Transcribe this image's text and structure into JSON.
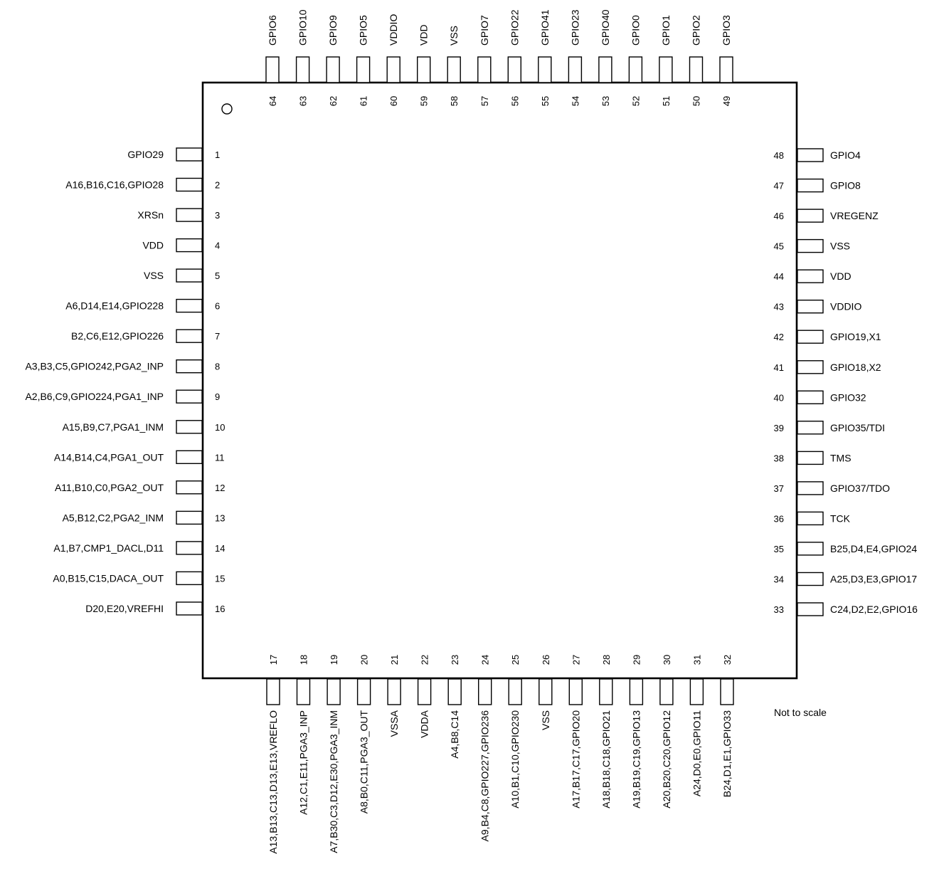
{
  "note": "Not to scale",
  "pins": {
    "left": [
      {
        "number": "1",
        "signal": "GPIO29"
      },
      {
        "number": "2",
        "signal": "A16,B16,C16,GPIO28"
      },
      {
        "number": "3",
        "signal": "XRSn"
      },
      {
        "number": "4",
        "signal": "VDD"
      },
      {
        "number": "5",
        "signal": "VSS"
      },
      {
        "number": "6",
        "signal": "A6,D14,E14,GPIO228"
      },
      {
        "number": "7",
        "signal": "B2,C6,E12,GPIO226"
      },
      {
        "number": "8",
        "signal": "A3,B3,C5,GPIO242,PGA2_INP"
      },
      {
        "number": "9",
        "signal": "A2,B6,C9,GPIO224,PGA1_INP"
      },
      {
        "number": "10",
        "signal": "A15,B9,C7,PGA1_INM"
      },
      {
        "number": "11",
        "signal": "A14,B14,C4,PGA1_OUT"
      },
      {
        "number": "12",
        "signal": "A11,B10,C0,PGA2_OUT"
      },
      {
        "number": "13",
        "signal": "A5,B12,C2,PGA2_INM"
      },
      {
        "number": "14",
        "signal": "A1,B7,CMP1_DACL,D11"
      },
      {
        "number": "15",
        "signal": "A0,B15,C15,DACA_OUT"
      },
      {
        "number": "16",
        "signal": "D20,E20,VREFHI"
      }
    ],
    "bottom": [
      {
        "number": "17",
        "signal": "A13,B13,C13,D13,E13,VREFLO"
      },
      {
        "number": "18",
        "signal": "A12,C1,E11,PGA3_INP"
      },
      {
        "number": "19",
        "signal": "A7,B30,C3,D12,E30,PGA3_INM"
      },
      {
        "number": "20",
        "signal": "A8,B0,C11,PGA3_OUT"
      },
      {
        "number": "21",
        "signal": "VSSA"
      },
      {
        "number": "22",
        "signal": "VDDA"
      },
      {
        "number": "23",
        "signal": "A4,B8,C14"
      },
      {
        "number": "24",
        "signal": "A9,B4,C8,GPIO227,GPIO236"
      },
      {
        "number": "25",
        "signal": "A10,B1,C10,GPIO230"
      },
      {
        "number": "26",
        "signal": "VSS"
      },
      {
        "number": "27",
        "signal": "A17,B17,C17,GPIO20"
      },
      {
        "number": "28",
        "signal": "A18,B18,C18,GPIO21"
      },
      {
        "number": "29",
        "signal": "A19,B19,C19,GPIO13"
      },
      {
        "number": "30",
        "signal": "A20,B20,C20,GPIO12"
      },
      {
        "number": "31",
        "signal": "A24,D0,E0,GPIO11"
      },
      {
        "number": "32",
        "signal": "B24,D1,E1,GPIO33"
      }
    ],
    "right": [
      {
        "number": "33",
        "signal": "C24,D2,E2,GPIO16"
      },
      {
        "number": "34",
        "signal": "A25,D3,E3,GPIO17"
      },
      {
        "number": "35",
        "signal": "B25,D4,E4,GPIO24"
      },
      {
        "number": "36",
        "signal": "TCK"
      },
      {
        "number": "37",
        "signal": "GPIO37/TDO"
      },
      {
        "number": "38",
        "signal": "TMS"
      },
      {
        "number": "39",
        "signal": "GPIO35/TDI"
      },
      {
        "number": "40",
        "signal": "GPIO32"
      },
      {
        "number": "41",
        "signal": "GPIO18,X2"
      },
      {
        "number": "42",
        "signal": "GPIO19,X1"
      },
      {
        "number": "43",
        "signal": "VDDIO"
      },
      {
        "number": "44",
        "signal": "VDD"
      },
      {
        "number": "45",
        "signal": "VSS"
      },
      {
        "number": "46",
        "signal": "VREGENZ"
      },
      {
        "number": "47",
        "signal": "GPIO8"
      },
      {
        "number": "48",
        "signal": "GPIO4"
      }
    ],
    "top": [
      {
        "number": "49",
        "signal": "GPIO3"
      },
      {
        "number": "50",
        "signal": "GPIO2"
      },
      {
        "number": "51",
        "signal": "GPIO1"
      },
      {
        "number": "52",
        "signal": "GPIO0"
      },
      {
        "number": "53",
        "signal": "GPIO40"
      },
      {
        "number": "54",
        "signal": "GPIO23"
      },
      {
        "number": "55",
        "signal": "GPIO41"
      },
      {
        "number": "56",
        "signal": "GPIO22"
      },
      {
        "number": "57",
        "signal": "GPIO7"
      },
      {
        "number": "58",
        "signal": "VSS"
      },
      {
        "number": "59",
        "signal": "VDD"
      },
      {
        "number": "60",
        "signal": "VDDIO"
      },
      {
        "number": "61",
        "signal": "GPIO5"
      },
      {
        "number": "62",
        "signal": "GPIO9"
      },
      {
        "number": "63",
        "signal": "GPIO10"
      },
      {
        "number": "64",
        "signal": "GPIO6"
      }
    ]
  }
}
